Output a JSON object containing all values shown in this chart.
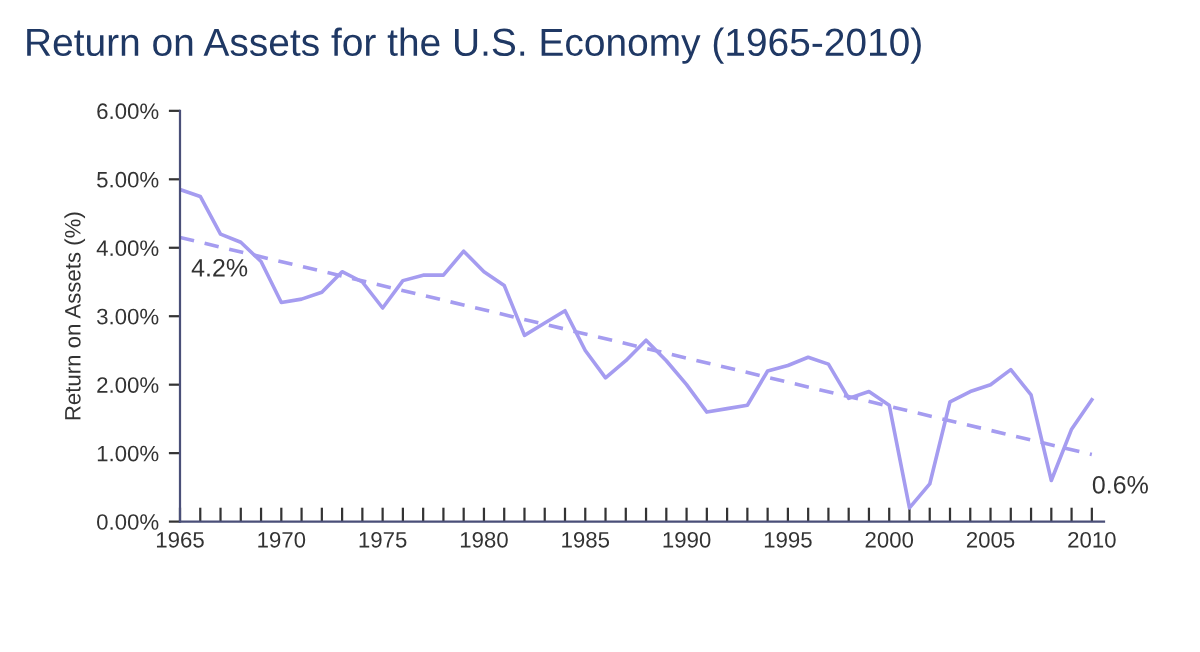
{
  "chart_data": {
    "type": "line",
    "title": "Return on Assets for the U.S. Economy (1965-2010)",
    "ylabel": "Return on Assets (%)",
    "x": [
      1965,
      1966,
      1967,
      1968,
      1969,
      1970,
      1971,
      1972,
      1973,
      1974,
      1975,
      1976,
      1977,
      1978,
      1979,
      1980,
      1981,
      1982,
      1983,
      1984,
      1985,
      1986,
      1987,
      1988,
      1989,
      1990,
      1991,
      1992,
      1993,
      1994,
      1995,
      1996,
      1997,
      1998,
      1999,
      2000,
      2001,
      2002,
      2003,
      2004,
      2005,
      2006,
      2007,
      2008,
      2009,
      2010
    ],
    "series": [
      {
        "color": "#a59cf0",
        "line_style": "solid",
        "values": [
          4.85,
          4.75,
          4.2,
          4.08,
          3.8,
          3.2,
          3.25,
          3.35,
          3.65,
          3.5,
          3.12,
          3.52,
          3.6,
          3.6,
          3.95,
          3.65,
          3.45,
          2.72,
          2.9,
          3.08,
          2.5,
          2.1,
          2.35,
          2.65,
          2.35,
          2.0,
          1.6,
          1.65,
          1.7,
          2.2,
          2.28,
          2.4,
          2.3,
          1.8,
          1.9,
          1.7,
          0.2,
          0.55,
          1.75,
          1.9,
          2.0,
          2.22,
          1.85,
          0.6,
          1.35,
          1.78
        ]
      },
      {
        "type": "line",
        "color": "#a59cf0",
        "line_style": "dashed",
        "x": [
          1965,
          2010
        ],
        "values": [
          4.15,
          0.98
        ]
      }
    ],
    "annotations": [
      {
        "text": "4.2%",
        "x": 1965,
        "y": 4.15
      },
      {
        "text": "0.6%",
        "x": 2010,
        "y": 0.98
      }
    ],
    "xlim": [
      1965,
      2010.6
    ],
    "xticks": [
      {
        "value": 1965,
        "label": "1965"
      },
      {
        "value": 1966,
        "label": null
      },
      {
        "value": 1967,
        "label": null
      },
      {
        "value": 1968,
        "label": null
      },
      {
        "value": 1969,
        "label": null
      },
      {
        "value": 1970,
        "label": "1970"
      },
      {
        "value": 1971,
        "label": null
      },
      {
        "value": 1972,
        "label": null
      },
      {
        "value": 1973,
        "label": null
      },
      {
        "value": 1974,
        "label": null
      },
      {
        "value": 1975,
        "label": "1975"
      },
      {
        "value": 1976,
        "label": null
      },
      {
        "value": 1977,
        "label": null
      },
      {
        "value": 1978,
        "label": null
      },
      {
        "value": 1979,
        "label": null
      },
      {
        "value": 1980,
        "label": "1980"
      },
      {
        "value": 1981,
        "label": null
      },
      {
        "value": 1982,
        "label": null
      },
      {
        "value": 1983,
        "label": null
      },
      {
        "value": 1984,
        "label": null
      },
      {
        "value": 1985,
        "label": "1985"
      },
      {
        "value": 1986,
        "label": null
      },
      {
        "value": 1987,
        "label": null
      },
      {
        "value": 1988,
        "label": null
      },
      {
        "value": 1989,
        "label": null
      },
      {
        "value": 1990,
        "label": "1990"
      },
      {
        "value": 1991,
        "label": null
      },
      {
        "value": 1992,
        "label": null
      },
      {
        "value": 1993,
        "label": null
      },
      {
        "value": 1994,
        "label": null
      },
      {
        "value": 1995,
        "label": "1995"
      },
      {
        "value": 1996,
        "label": null
      },
      {
        "value": 1997,
        "label": null
      },
      {
        "value": 1998,
        "label": null
      },
      {
        "value": 1999,
        "label": null
      },
      {
        "value": 2000,
        "label": "2000"
      },
      {
        "value": 2001,
        "label": null
      },
      {
        "value": 2002,
        "label": null
      },
      {
        "value": 2003,
        "label": null
      },
      {
        "value": 2004,
        "label": null
      },
      {
        "value": 2005,
        "label": "2005"
      },
      {
        "value": 2006,
        "label": null
      },
      {
        "value": 2007,
        "label": null
      },
      {
        "value": 2008,
        "label": null
      },
      {
        "value": 2009,
        "label": null
      },
      {
        "value": 2010,
        "label": "2010"
      }
    ],
    "ylim": [
      0,
      6
    ],
    "yticks": [
      {
        "value": 0,
        "label": "0.00%"
      },
      {
        "value": 1,
        "label": "1.00%"
      },
      {
        "value": 2,
        "label": "2.00%"
      },
      {
        "value": 3,
        "label": "3.00%"
      },
      {
        "value": 4,
        "label": "4.00%"
      },
      {
        "value": 5,
        "label": "5.00%"
      },
      {
        "value": 6,
        "label": "6.00%"
      }
    ],
    "grid": false,
    "legend": false,
    "marker": "none"
  }
}
